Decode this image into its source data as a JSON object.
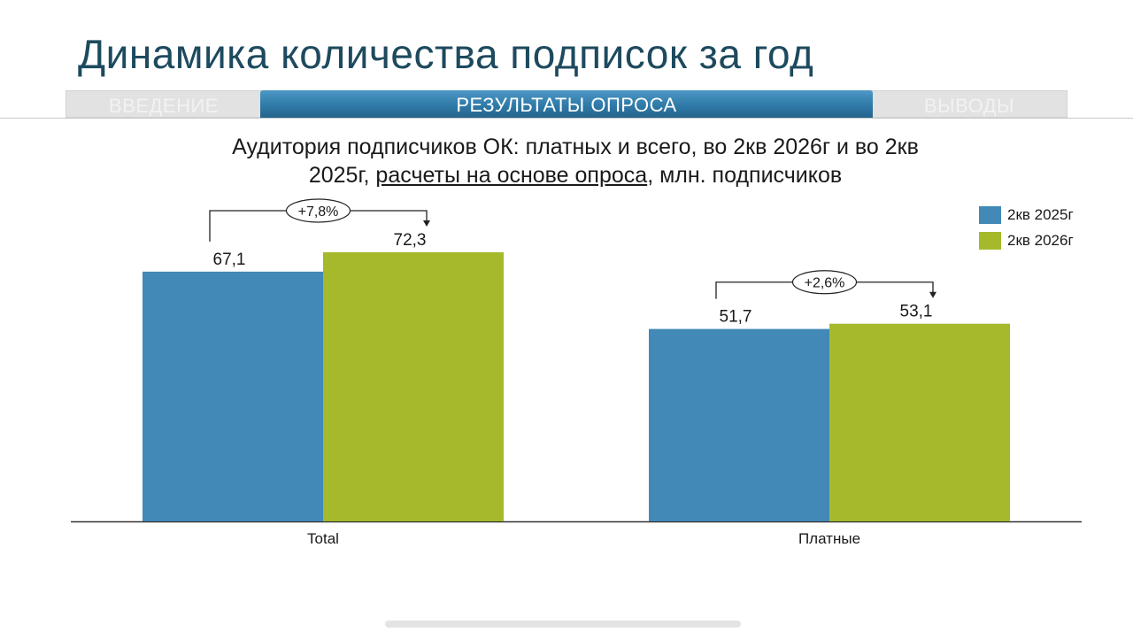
{
  "page": {
    "title": "Динамика количества подписок за год"
  },
  "nav": {
    "tabs": [
      {
        "label": "ВВЕДЕНИЕ",
        "active": false
      },
      {
        "label": "РЕЗУЛЬТАТЫ ОПРОСА",
        "active": true
      },
      {
        "label": "ВЫВОДЫ",
        "active": false
      }
    ]
  },
  "chart_data": {
    "type": "bar",
    "title_part1": "Аудитория подписчиков ОК: платных и всего, во 2кв 2026г и во 2кв 2025г,",
    "title_underlined": "расчеты на основе опроса",
    "title_part2": ", млн. подписчиков",
    "categories": [
      "Total",
      "Платные"
    ],
    "series": [
      {
        "name": "2кв 2025г",
        "color": "#4289b7",
        "values": [
          67.1,
          51.7
        ],
        "labels": [
          "67,1",
          "51,7"
        ]
      },
      {
        "name": "2кв 2026г",
        "color": "#a5b92a",
        "values": [
          72.3,
          53.1
        ],
        "labels": [
          "72,3",
          "53,1"
        ]
      }
    ],
    "changes": [
      "+7,8%",
      "+2,6%"
    ],
    "ylim": [
      0,
      72.3
    ],
    "grid": false,
    "legend_position": "top-right"
  }
}
